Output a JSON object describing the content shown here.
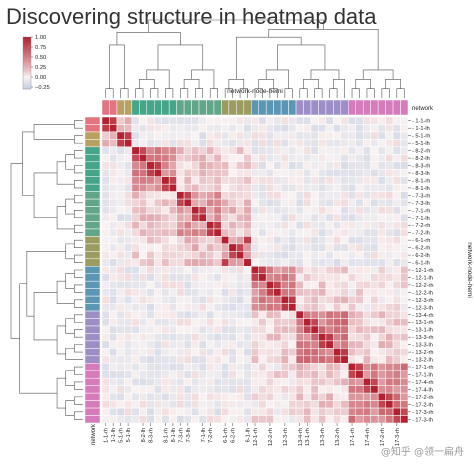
{
  "page": {
    "title": "Discovering structure in heatmap data",
    "watermark": "@知乎 @领一扁舟"
  },
  "chart_data": {
    "type": "heatmap",
    "title": "Discovering structure in heatmap data",
    "xlabel": "network-node-hemi",
    "ylabel": "network-node-hemi",
    "row_color_label": "network",
    "col_color_label": "network",
    "colorbar": {
      "vmin": -0.3,
      "vmax": 1.0,
      "ticks": [
        1.0,
        0.75,
        0.5,
        0.25,
        0.0,
        -0.25
      ],
      "tick_labels": [
        "1.00",
        "0.75",
        "0.50",
        "0.25",
        "0.00",
        "−0.25"
      ],
      "low_color": "#c4cee3",
      "mid_color": "#f9f2f2",
      "high_color": "#b4202f"
    },
    "networks": [
      {
        "id": "1",
        "color": "#e2737f"
      },
      {
        "id": "5",
        "color": "#b8a060"
      },
      {
        "id": "8",
        "color": "#45a588"
      },
      {
        "id": "7",
        "color": "#62a68a"
      },
      {
        "id": "6",
        "color": "#9c9c60"
      },
      {
        "id": "12",
        "color": "#5c96b5"
      },
      {
        "id": "13",
        "color": "#9e8ec8"
      },
      {
        "id": "17",
        "color": "#d67bbb"
      }
    ],
    "labels": [
      "1-1-rh",
      "1-1-lh",
      "5-1-rh",
      "5-1-lh",
      "8-2-rh",
      "8-2-lh",
      "8-3-rh",
      "8-3-lh",
      "8-1-rh",
      "8-1-lh",
      "7-3-rh",
      "7-3-lh",
      "7-1-rh",
      "7-1-lh",
      "7-2-rh",
      "7-2-lh",
      "6-1-rh",
      "6-2-rh",
      "6-2-lh",
      "6-1-lh",
      "12-1-rh",
      "12-1-lh",
      "12-2-rh",
      "12-2-lh",
      "12-3-rh",
      "12-3-lh",
      "13-4-rh",
      "13-1-rh",
      "13-1-lh",
      "13-3-rh",
      "13-3-lh",
      "13-2-rh",
      "13-2-lh",
      "17-1-rh",
      "17-1-lh",
      "17-4-rh",
      "17-4-lh",
      "17-2-rh",
      "17-2-lh",
      "17-3-rh",
      "17-3-lh"
    ],
    "row_labels_shown": [
      "1-1-rh",
      "1-1-lh",
      "5-1-rh",
      "5-1-lh",
      "8-2-rh",
      "8-2-lh",
      "8-3-rh",
      "8-3-lh",
      "8-1-rh",
      "8-1-lh",
      "7-3-rh",
      "7-3-lh",
      "7-1-rh",
      "7-1-lh",
      "7-2-rh",
      "7-2-lh",
      "6-1-rh",
      "6-2-rh",
      "6-2-lh",
      "6-1-lh",
      "12-1-rh",
      "12-1-lh",
      "12-2-rh",
      "12-2-lh",
      "12-3-rh",
      "12-3-lh",
      "13-4-rh",
      "13-1-rh",
      "13-1-lh",
      "13-3-rh",
      "13-3-lh",
      "13-2-rh",
      "13-2-lh",
      "17-1-rh",
      "17-1-lh",
      "17-4-rh",
      "17-4-lh",
      "17-2-rh",
      "17-2-lh",
      "17-3-rh",
      "17-3-lh"
    ],
    "col_labels_shown": [
      "1-1-rh",
      "1-1-lh",
      "5-1-rh",
      "5-1-lh",
      "8-2-lh",
      "8-3-rh",
      "8-1-rh",
      "8-1-lh",
      "7-3-rh",
      "7-3-lh",
      "7-1-lh",
      "7-2-rh",
      "6-1-rh",
      "6-2-rh",
      "6-1-lh",
      "12-1-rh",
      "12-2-rh",
      "12-3-rh",
      "13-4-rh",
      "13-1-rh",
      "13-3-rh",
      "13-2-rh",
      "17-1-rh",
      "17-4-rh",
      "17-2-rh",
      "17-3-rh"
    ],
    "col_labels_shown_idx": [
      0,
      1,
      2,
      3,
      5,
      6,
      8,
      9,
      10,
      11,
      13,
      14,
      16,
      17,
      19,
      20,
      22,
      24,
      26,
      27,
      29,
      31,
      33,
      35,
      37,
      39
    ]
  }
}
